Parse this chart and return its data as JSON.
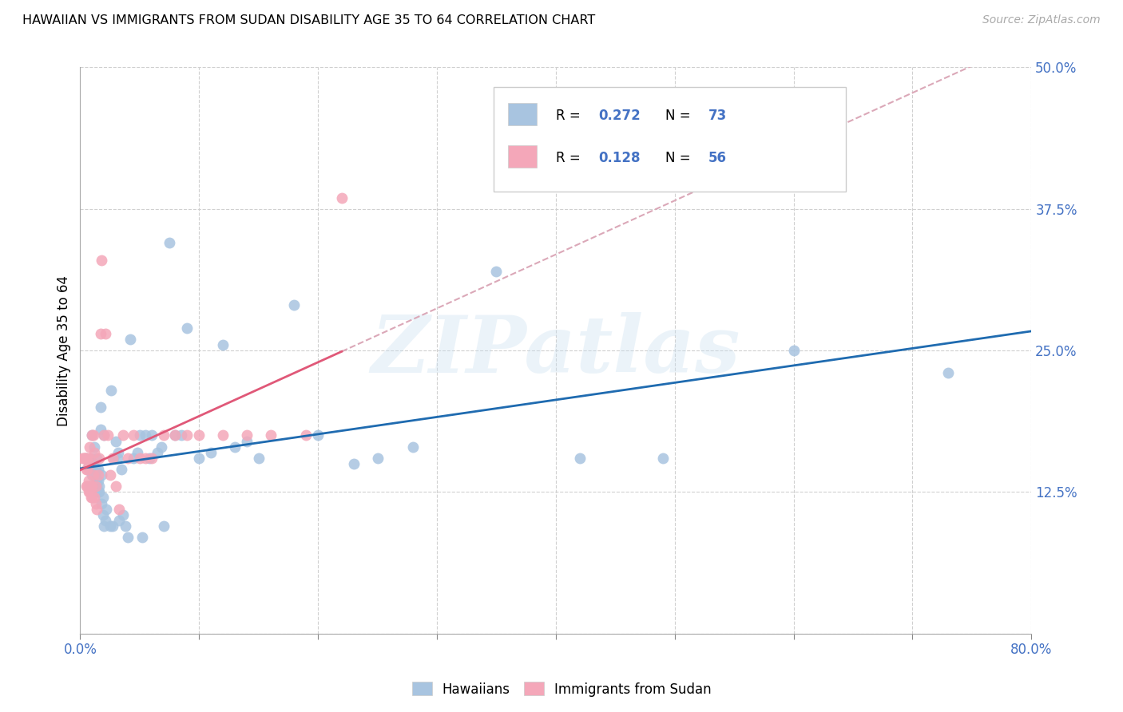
{
  "title": "HAWAIIAN VS IMMIGRANTS FROM SUDAN DISABILITY AGE 35 TO 64 CORRELATION CHART",
  "source": "Source: ZipAtlas.com",
  "ylabel": "Disability Age 35 to 64",
  "xlim": [
    0.0,
    0.8
  ],
  "ylim": [
    0.0,
    0.5
  ],
  "yticks": [
    0.0,
    0.125,
    0.25,
    0.375,
    0.5
  ],
  "ytick_labels": [
    "",
    "12.5%",
    "25.0%",
    "37.5%",
    "50.0%"
  ],
  "xticks": [
    0.0,
    0.1,
    0.2,
    0.3,
    0.4,
    0.5,
    0.6,
    0.7,
    0.8
  ],
  "xtick_labels": [
    "0.0%",
    "",
    "",
    "",
    "",
    "",
    "",
    "",
    "80.0%"
  ],
  "hawaiian_color": "#a8c4e0",
  "sudan_color": "#f4a7b9",
  "hawaiian_line_color": "#1f6bb0",
  "sudan_line_color": "#e05878",
  "sudan_dash_color": "#dba8b8",
  "tick_color": "#4472c4",
  "R_hawaiian": 0.272,
  "N_hawaiian": 73,
  "R_sudan": 0.128,
  "N_sudan": 56,
  "watermark": "ZIPatlas",
  "legend_label_hawaiian": "Hawaiians",
  "legend_label_sudan": "Immigrants from Sudan",
  "hawaiian_x": [
    0.005,
    0.007,
    0.008,
    0.009,
    0.01,
    0.01,
    0.011,
    0.011,
    0.012,
    0.012,
    0.013,
    0.013,
    0.014,
    0.014,
    0.014,
    0.015,
    0.015,
    0.015,
    0.016,
    0.016,
    0.017,
    0.017,
    0.018,
    0.018,
    0.019,
    0.019,
    0.02,
    0.02,
    0.021,
    0.022,
    0.025,
    0.026,
    0.027,
    0.028,
    0.03,
    0.031,
    0.032,
    0.033,
    0.035,
    0.036,
    0.038,
    0.04,
    0.042,
    0.045,
    0.048,
    0.05,
    0.052,
    0.055,
    0.058,
    0.06,
    0.065,
    0.068,
    0.07,
    0.075,
    0.08,
    0.085,
    0.09,
    0.1,
    0.11,
    0.12,
    0.13,
    0.14,
    0.15,
    0.18,
    0.2,
    0.23,
    0.25,
    0.28,
    0.35,
    0.42,
    0.49,
    0.6,
    0.73
  ],
  "hawaiian_y": [
    0.155,
    0.145,
    0.13,
    0.155,
    0.175,
    0.14,
    0.13,
    0.15,
    0.13,
    0.165,
    0.14,
    0.145,
    0.135,
    0.13,
    0.155,
    0.145,
    0.125,
    0.135,
    0.125,
    0.13,
    0.2,
    0.18,
    0.14,
    0.115,
    0.12,
    0.105,
    0.175,
    0.095,
    0.1,
    0.11,
    0.095,
    0.215,
    0.095,
    0.155,
    0.17,
    0.155,
    0.16,
    0.1,
    0.145,
    0.105,
    0.095,
    0.085,
    0.26,
    0.155,
    0.16,
    0.175,
    0.085,
    0.175,
    0.155,
    0.175,
    0.16,
    0.165,
    0.095,
    0.345,
    0.175,
    0.175,
    0.27,
    0.155,
    0.16,
    0.255,
    0.165,
    0.17,
    0.155,
    0.29,
    0.175,
    0.15,
    0.155,
    0.165,
    0.32,
    0.155,
    0.155,
    0.25,
    0.23
  ],
  "sudan_x": [
    0.002,
    0.003,
    0.004,
    0.004,
    0.005,
    0.005,
    0.005,
    0.006,
    0.006,
    0.006,
    0.007,
    0.007,
    0.007,
    0.007,
    0.008,
    0.008,
    0.008,
    0.009,
    0.009,
    0.009,
    0.01,
    0.01,
    0.01,
    0.011,
    0.011,
    0.012,
    0.012,
    0.013,
    0.013,
    0.014,
    0.015,
    0.016,
    0.017,
    0.018,
    0.02,
    0.021,
    0.023,
    0.025,
    0.027,
    0.03,
    0.033,
    0.036,
    0.04,
    0.045,
    0.05,
    0.055,
    0.06,
    0.07,
    0.08,
    0.09,
    0.1,
    0.12,
    0.14,
    0.16,
    0.19,
    0.22
  ],
  "sudan_y": [
    0.155,
    0.155,
    0.155,
    0.155,
    0.145,
    0.155,
    0.13,
    0.13,
    0.145,
    0.155,
    0.125,
    0.13,
    0.135,
    0.15,
    0.125,
    0.155,
    0.165,
    0.12,
    0.125,
    0.13,
    0.12,
    0.13,
    0.175,
    0.14,
    0.175,
    0.12,
    0.16,
    0.115,
    0.13,
    0.11,
    0.14,
    0.155,
    0.265,
    0.33,
    0.175,
    0.265,
    0.175,
    0.14,
    0.155,
    0.13,
    0.11,
    0.175,
    0.155,
    0.175,
    0.155,
    0.155,
    0.155,
    0.175,
    0.175,
    0.175,
    0.175,
    0.175,
    0.175,
    0.175,
    0.175,
    0.385
  ]
}
